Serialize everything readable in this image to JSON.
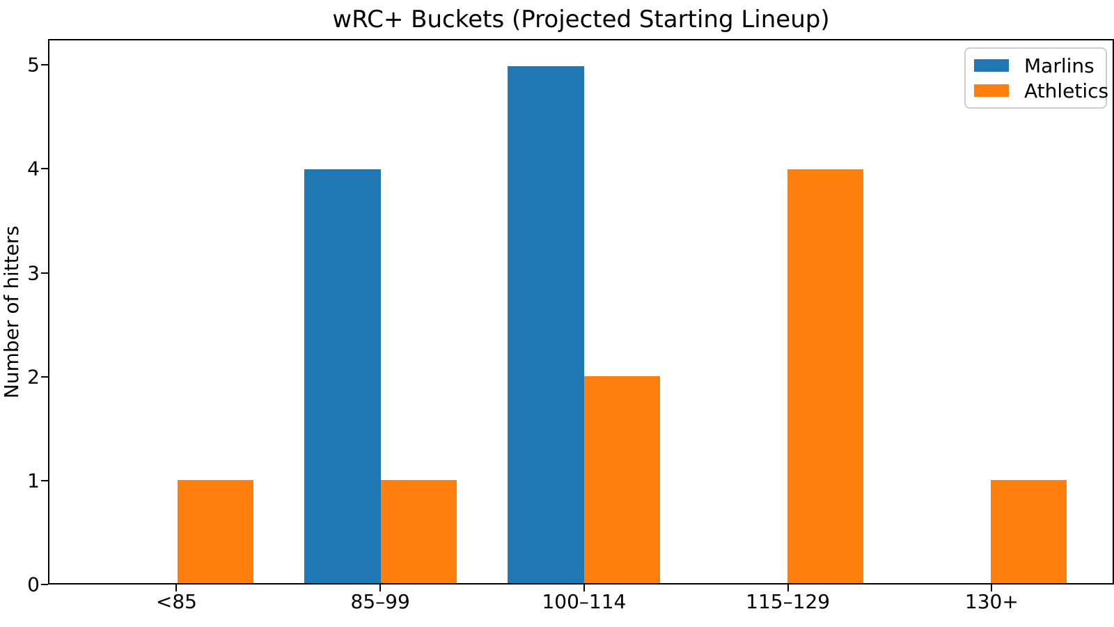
{
  "chart_data": {
    "type": "bar",
    "title": "wRC+ Buckets (Projected Starting Lineup)",
    "xlabel": "",
    "ylabel": "Number of hitters",
    "categories": [
      "<85",
      "85–99",
      "100–114",
      "115–129",
      "130+"
    ],
    "series": [
      {
        "name": "Marlins",
        "color": "#1f77b4",
        "values": [
          0,
          4,
          5,
          0,
          0
        ]
      },
      {
        "name": "Athletics",
        "color": "#ff7f0e",
        "values": [
          1,
          1,
          2,
          4,
          1
        ]
      }
    ],
    "yticks": [
      0,
      1,
      2,
      3,
      4,
      5
    ],
    "ylim": [
      0,
      5.25
    ],
    "xlim": [
      -0.63,
      4.6
    ],
    "bar_width": 0.375,
    "grid": false,
    "legend_position": "upper right",
    "background": "#ffffff"
  }
}
